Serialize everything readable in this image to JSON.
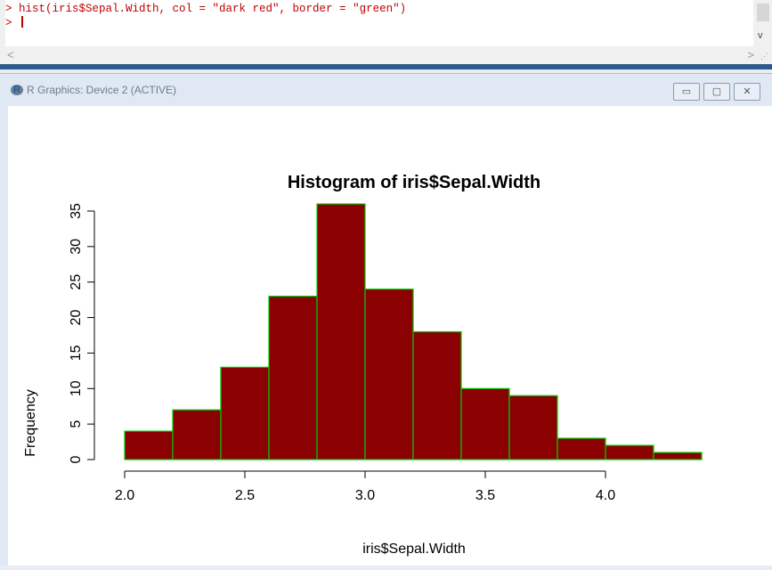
{
  "console": {
    "lines": [
      "> hist(iris$Sepal.Width, col = \"dark red\", border = \"green\")",
      "> "
    ],
    "scroll_left": "<",
    "scroll_right": ">",
    "scroll_down": "v"
  },
  "graphics_window": {
    "title": "R Graphics: Device 2 (ACTIVE)",
    "minimize_label": "▭",
    "maximize_label": "▢",
    "close_label": "✕"
  },
  "colors": {
    "bar_fill": "#8b0000",
    "bar_border": "#00cc00"
  },
  "chart_data": {
    "type": "bar",
    "title": "Histogram of iris$Sepal.Width",
    "xlabel": "iris$Sepal.Width",
    "ylabel": "Frequency",
    "bins": [
      {
        "start": 2.0,
        "end": 2.2,
        "count": 4
      },
      {
        "start": 2.2,
        "end": 2.4,
        "count": 7
      },
      {
        "start": 2.4,
        "end": 2.6,
        "count": 13
      },
      {
        "start": 2.6,
        "end": 2.8,
        "count": 23
      },
      {
        "start": 2.8,
        "end": 3.0,
        "count": 36
      },
      {
        "start": 3.0,
        "end": 3.2,
        "count": 24
      },
      {
        "start": 3.2,
        "end": 3.4,
        "count": 18
      },
      {
        "start": 3.4,
        "end": 3.6,
        "count": 10
      },
      {
        "start": 3.6,
        "end": 3.8,
        "count": 9
      },
      {
        "start": 3.8,
        "end": 4.0,
        "count": 3
      },
      {
        "start": 4.0,
        "end": 4.2,
        "count": 2
      },
      {
        "start": 4.2,
        "end": 4.4,
        "count": 1
      }
    ],
    "xticks": [
      "2.0",
      "2.5",
      "3.0",
      "3.5",
      "4.0"
    ],
    "yticks": [
      "0",
      "5",
      "10",
      "15",
      "20",
      "25",
      "30",
      "35"
    ],
    "xlim": [
      2.0,
      4.4
    ],
    "ylim": [
      0,
      36
    ],
    "grid": false,
    "legend": "none"
  }
}
